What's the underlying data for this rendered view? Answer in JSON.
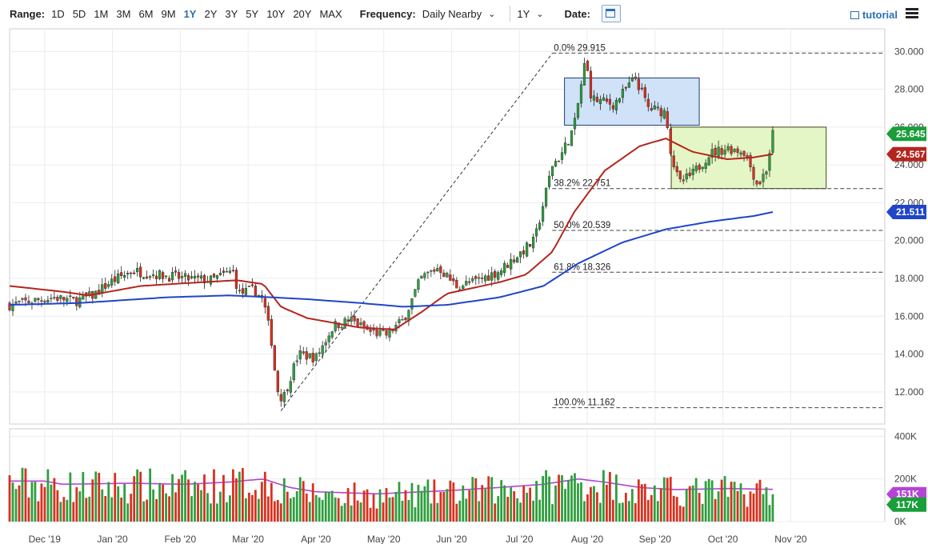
{
  "toolbar": {
    "range_label": "Range:",
    "ranges": [
      "1D",
      "5D",
      "1M",
      "3M",
      "6M",
      "9M",
      "1Y",
      "2Y",
      "3Y",
      "5Y",
      "10Y",
      "20Y",
      "MAX"
    ],
    "active_range": "1Y",
    "frequency_label": "Frequency:",
    "frequency_value": "Daily Nearby",
    "period_value": "1Y",
    "date_label": "Date:",
    "tutorial_label": "tutorial"
  },
  "colors": {
    "bull": "#2e9e3e",
    "bear": "#d9301e",
    "ma_short": "#b3261e",
    "ma_long": "#1f45c9",
    "volume_ma": "#b444d6",
    "blue_box": "#cfe2f7",
    "green_box": "#e5f6c6"
  },
  "chart_data": {
    "type": "candlestick",
    "x_tick_labels": [
      "Dec '19",
      "Jan '20",
      "Feb '20",
      "Mar '20",
      "Apr '20",
      "May '20",
      "Jun '20",
      "Jul '20",
      "Aug '20",
      "Sep '20",
      "Oct '20",
      "Nov '20"
    ],
    "price_axis": {
      "ticks": [
        "30.000",
        "28.000",
        "26.000",
        "24.000",
        "22.000",
        "20.000",
        "18.000",
        "16.000",
        "14.000",
        "12.000"
      ],
      "ylim": [
        10.3,
        31.2
      ]
    },
    "volume_axis": {
      "ticks": [
        "400K",
        "200K",
        "0K"
      ],
      "ylim": [
        0,
        420000
      ]
    },
    "price_tags": [
      {
        "value": "25.645",
        "series": "last"
      },
      {
        "value": "24.567",
        "series": "ma_short"
      },
      {
        "value": "21.511",
        "series": "ma_long"
      }
    ],
    "volume_tags": [
      {
        "value": "151K",
        "series": "volume_ma"
      },
      {
        "value": "117K",
        "series": "volume"
      }
    ],
    "fibonacci": [
      {
        "label": "0.0% 29.915",
        "value": 29.915
      },
      {
        "label": "38.2% 22.751",
        "value": 22.751
      },
      {
        "label": "50.0% 20.539",
        "value": 20.539
      },
      {
        "label": "61.8% 18.326",
        "value": 18.326
      },
      {
        "label": "100.0% 11.162",
        "value": 11.162
      }
    ],
    "rectangles": [
      {
        "x0": 0.634,
        "x1": 0.788,
        "top": 28.6,
        "bottom": 26.1,
        "color": "blue"
      },
      {
        "x0": 0.756,
        "x1": 0.933,
        "top": 26.0,
        "bottom": 22.75,
        "color": "green"
      }
    ],
    "price_path": [
      [
        0.0,
        16.6
      ],
      [
        0.05,
        17.0
      ],
      [
        0.075,
        16.8
      ],
      [
        0.095,
        17.1
      ],
      [
        0.115,
        17.8
      ],
      [
        0.14,
        18.4
      ],
      [
        0.17,
        18.2
      ],
      [
        0.2,
        18.0
      ],
      [
        0.23,
        17.9
      ],
      [
        0.255,
        18.4
      ],
      [
        0.262,
        17.2
      ],
      [
        0.28,
        17.4
      ],
      [
        0.29,
        16.8
      ],
      [
        0.3,
        14.5
      ],
      [
        0.305,
        12.2
      ],
      [
        0.312,
        11.6
      ],
      [
        0.33,
        14.0
      ],
      [
        0.35,
        13.8
      ],
      [
        0.37,
        15.5
      ],
      [
        0.39,
        15.8
      ],
      [
        0.41,
        15.2
      ],
      [
        0.43,
        15.0
      ],
      [
        0.45,
        15.8
      ],
      [
        0.47,
        18.0
      ],
      [
        0.49,
        18.6
      ],
      [
        0.51,
        17.6
      ],
      [
        0.53,
        17.8
      ],
      [
        0.56,
        18.4
      ],
      [
        0.58,
        19.2
      ],
      [
        0.6,
        20.0
      ],
      [
        0.61,
        22.0
      ],
      [
        0.62,
        24.0
      ],
      [
        0.63,
        24.5
      ],
      [
        0.645,
        26.0
      ],
      [
        0.658,
        29.6
      ],
      [
        0.665,
        27.5
      ],
      [
        0.69,
        27.2
      ],
      [
        0.715,
        28.6
      ],
      [
        0.73,
        27.0
      ],
      [
        0.75,
        26.8
      ],
      [
        0.756,
        24.5
      ],
      [
        0.765,
        23.0
      ],
      [
        0.78,
        23.5
      ],
      [
        0.8,
        24.6
      ],
      [
        0.82,
        24.9
      ],
      [
        0.84,
        24.7
      ],
      [
        0.855,
        22.9
      ],
      [
        0.865,
        23.8
      ],
      [
        0.872,
        25.645
      ]
    ],
    "ma_short_path": [
      [
        0.0,
        17.6
      ],
      [
        0.06,
        17.3
      ],
      [
        0.09,
        17.1
      ],
      [
        0.15,
        17.6
      ],
      [
        0.22,
        17.8
      ],
      [
        0.26,
        17.9
      ],
      [
        0.29,
        17.7
      ],
      [
        0.31,
        16.5
      ],
      [
        0.34,
        15.9
      ],
      [
        0.4,
        15.4
      ],
      [
        0.44,
        15.3
      ],
      [
        0.47,
        16.2
      ],
      [
        0.5,
        17.2
      ],
      [
        0.56,
        17.8
      ],
      [
        0.59,
        18.2
      ],
      [
        0.62,
        19.4
      ],
      [
        0.645,
        21.5
      ],
      [
        0.68,
        23.7
      ],
      [
        0.72,
        25.0
      ],
      [
        0.75,
        25.4
      ],
      [
        0.78,
        24.7
      ],
      [
        0.82,
        24.3
      ],
      [
        0.85,
        24.4
      ],
      [
        0.872,
        24.567
      ]
    ],
    "ma_long_path": [
      [
        0.0,
        16.6
      ],
      [
        0.08,
        16.7
      ],
      [
        0.18,
        17.0
      ],
      [
        0.25,
        17.1
      ],
      [
        0.3,
        17.0
      ],
      [
        0.34,
        16.9
      ],
      [
        0.4,
        16.7
      ],
      [
        0.45,
        16.5
      ],
      [
        0.5,
        16.6
      ],
      [
        0.56,
        17.0
      ],
      [
        0.61,
        17.6
      ],
      [
        0.65,
        18.8
      ],
      [
        0.7,
        19.9
      ],
      [
        0.75,
        20.6
      ],
      [
        0.8,
        21.0
      ],
      [
        0.85,
        21.3
      ],
      [
        0.872,
        21.511
      ]
    ],
    "volume_ma_path": [
      [
        0.0,
        190000
      ],
      [
        0.04,
        190000
      ],
      [
        0.06,
        175000
      ],
      [
        0.14,
        180000
      ],
      [
        0.2,
        175000
      ],
      [
        0.25,
        185000
      ],
      [
        0.29,
        200000
      ],
      [
        0.32,
        160000
      ],
      [
        0.35,
        140000
      ],
      [
        0.42,
        130000
      ],
      [
        0.5,
        145000
      ],
      [
        0.56,
        160000
      ],
      [
        0.61,
        175000
      ],
      [
        0.65,
        200000
      ],
      [
        0.68,
        185000
      ],
      [
        0.72,
        160000
      ],
      [
        0.76,
        150000
      ],
      [
        0.82,
        155000
      ],
      [
        0.872,
        151000
      ]
    ],
    "candle_count": 240
  }
}
